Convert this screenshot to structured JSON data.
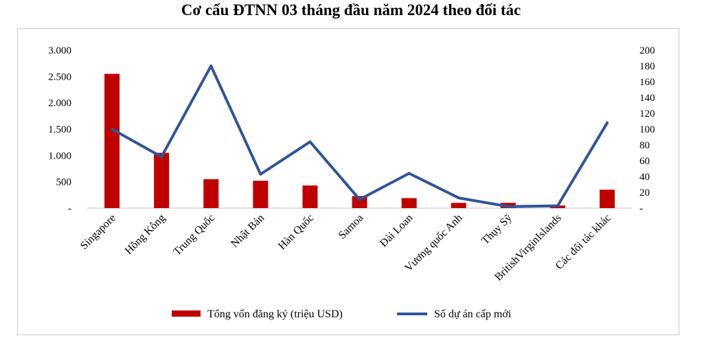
{
  "chart_data": {
    "type": "bar+line",
    "title": "Cơ cấu ĐTNN 03 tháng đầu năm 2024 theo đối tác",
    "categories": [
      "Singapore",
      "Hồng Kông",
      "Trung Quốc",
      "Nhật Bản",
      "Hàn Quốc",
      "Samoa",
      "Đài Loan",
      "Vương quốc Anh",
      "Thụy Sỹ",
      "BritishVirginIslands",
      "Các đối tác khác"
    ],
    "series": [
      {
        "name": "Tổng vốn đăng ký (triệu USD)",
        "type": "bar",
        "axis": "left",
        "color": "#c00000",
        "values": [
          2550,
          1050,
          550,
          520,
          430,
          230,
          190,
          100,
          100,
          50,
          350
        ]
      },
      {
        "name": "Số dự án cấp mới",
        "type": "line",
        "axis": "right",
        "color": "#2f5597",
        "values": [
          100,
          65,
          180,
          43,
          84,
          11,
          44,
          13,
          2,
          3,
          108
        ]
      }
    ],
    "y_left": {
      "ylim": [
        0,
        3000
      ],
      "tick_labels": [
        "-",
        "500",
        "1.000",
        "1.500",
        "2.000",
        "2.500",
        "3.000"
      ]
    },
    "y_right": {
      "ylim": [
        0,
        200
      ],
      "tick_labels": [
        "-",
        "20",
        "40",
        "60",
        "80",
        "100",
        "120",
        "140",
        "160",
        "180",
        "200"
      ]
    },
    "grid": false,
    "legend_position": "bottom"
  }
}
